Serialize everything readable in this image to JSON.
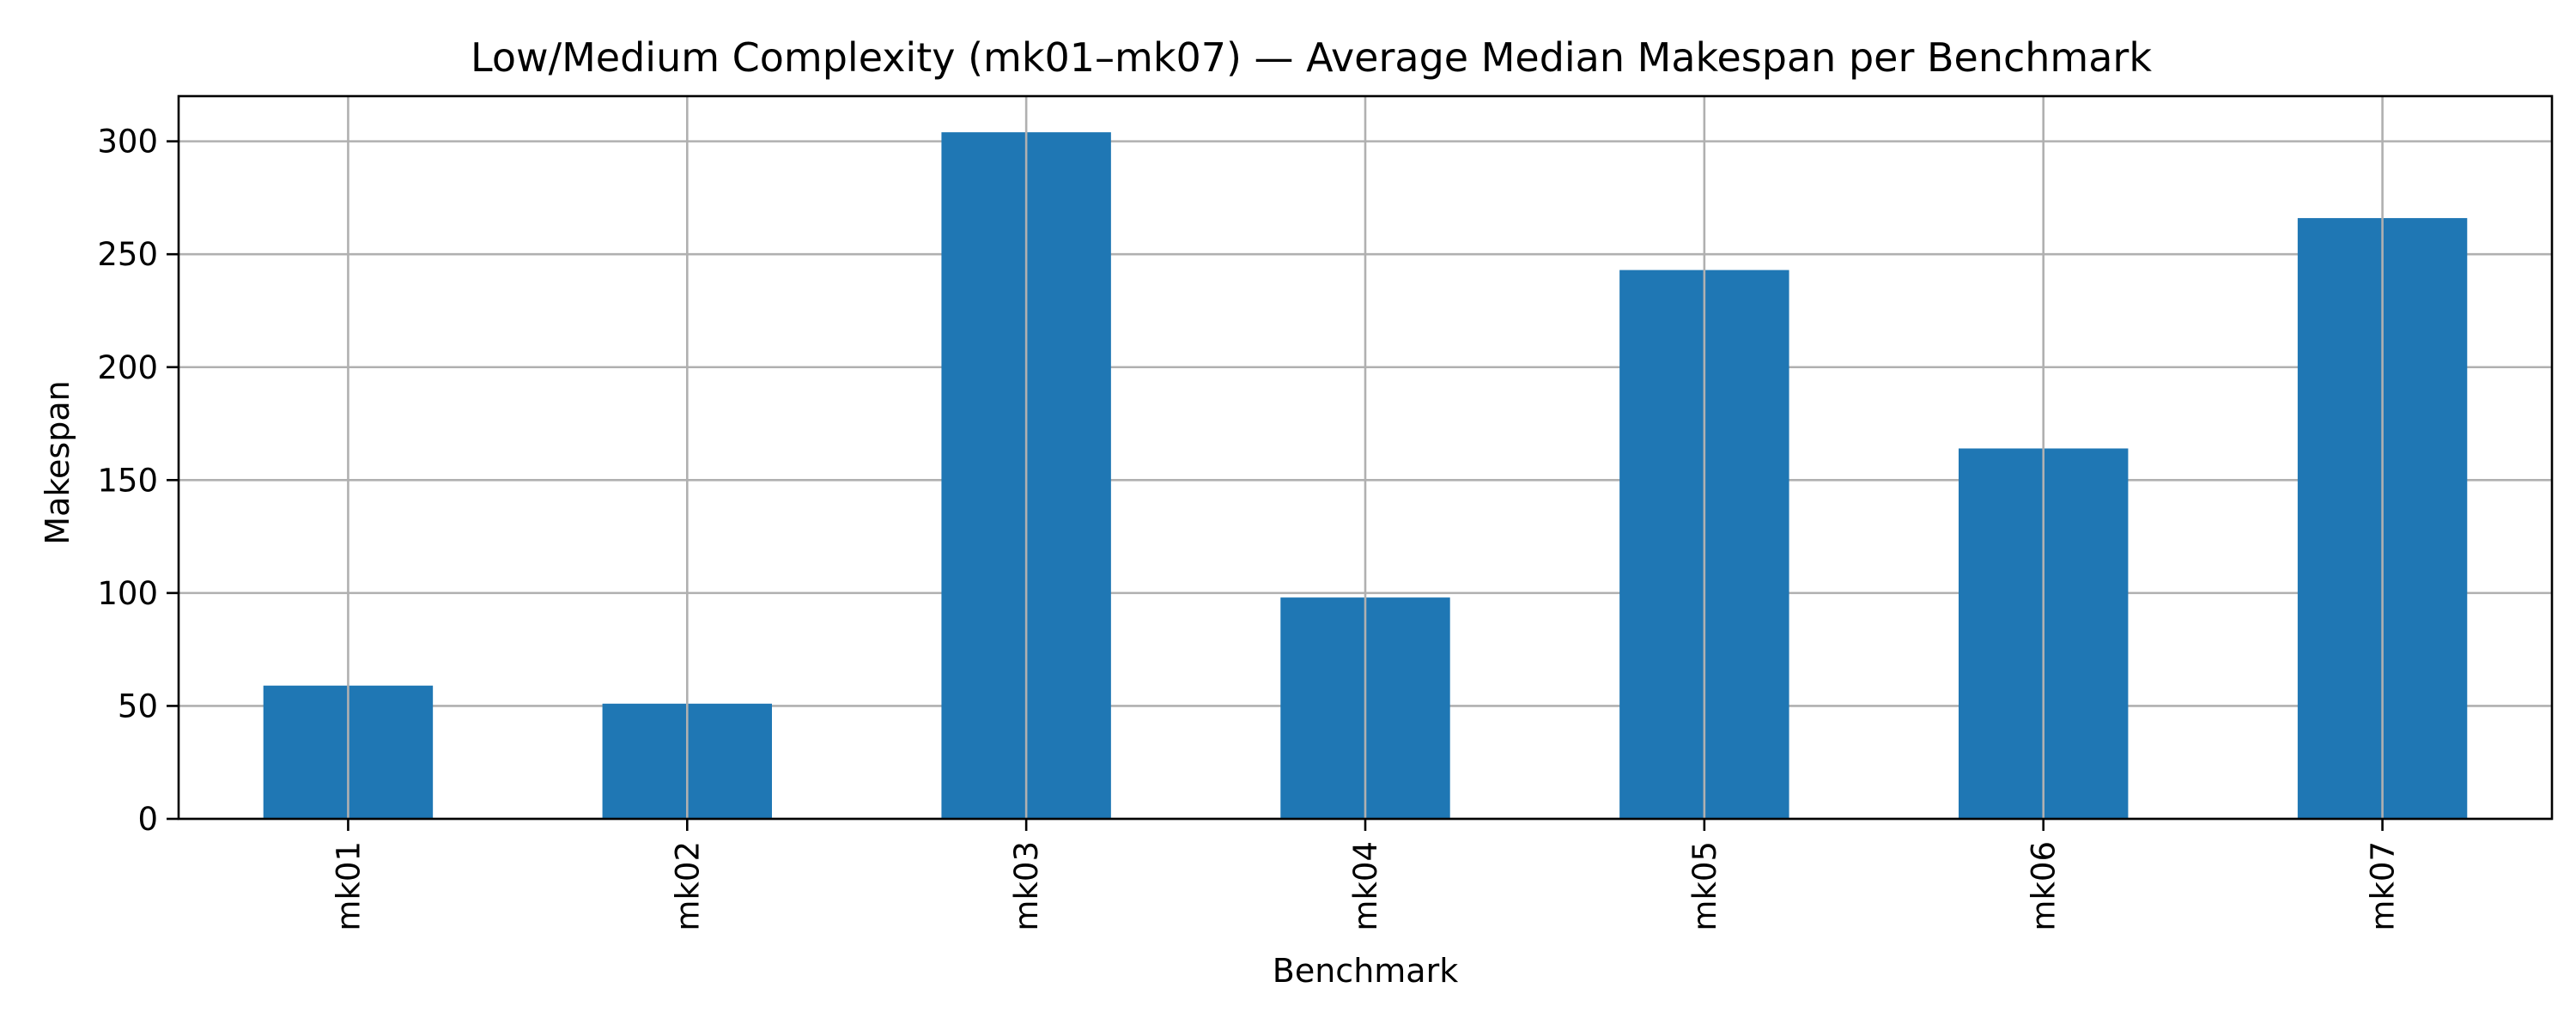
{
  "chart_data": {
    "type": "bar",
    "title": "Low/Medium Complexity (mk01–mk07) — Average Median Makespan per Benchmark",
    "xlabel": "Benchmark",
    "ylabel": "Makespan",
    "categories": [
      "mk01",
      "mk02",
      "mk03",
      "mk04",
      "mk05",
      "mk06",
      "mk07"
    ],
    "values": [
      59,
      51,
      304,
      98,
      243,
      164,
      266
    ],
    "ylim": [
      0,
      320
    ],
    "yticks": [
      0,
      50,
      100,
      150,
      200,
      250,
      300
    ],
    "grid": true,
    "bar_color": "#1f77b4",
    "legend": "none"
  }
}
